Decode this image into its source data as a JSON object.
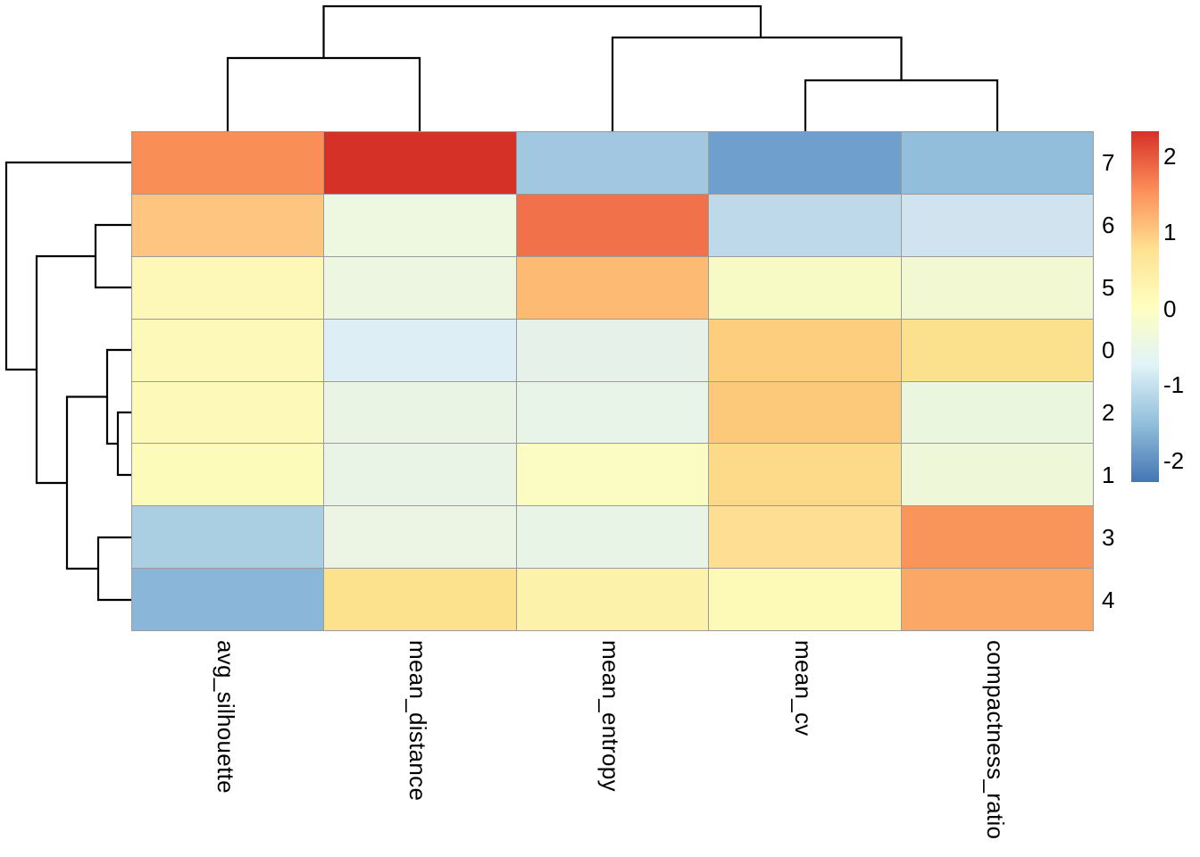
{
  "figure": {
    "background_color": "#ffffff",
    "grid_line_color": "#9b9b9b",
    "dendrogram_color": "#000000",
    "text_color": "#000000"
  },
  "chart_data": {
    "type": "heatmap",
    "title": "",
    "xlabel": "",
    "ylabel": "",
    "columns": [
      "avg_silhouette",
      "mean_distance",
      "mean_entropy",
      "mean_cv",
      "compactness_ratio"
    ],
    "rows": [
      "7",
      "6",
      "5",
      "0",
      "2",
      "1",
      "3",
      "4"
    ],
    "values": [
      [
        1.6,
        2.3,
        -1.25,
        -1.75,
        -1.4
      ],
      [
        1.1,
        -0.25,
        1.9,
        -1.0,
        -0.85
      ],
      [
        0.15,
        -0.3,
        1.3,
        -0.05,
        -0.15
      ],
      [
        0.12,
        -0.7,
        -0.45,
        1.0,
        0.8
      ],
      [
        0.1,
        -0.4,
        -0.42,
        1.05,
        -0.3
      ],
      [
        0.1,
        -0.4,
        0.0,
        0.9,
        -0.22
      ],
      [
        -1.15,
        -0.35,
        -0.43,
        0.85,
        1.5
      ],
      [
        -1.55,
        0.75,
        0.35,
        0.05,
        1.35
      ]
    ],
    "cell_colors": [
      [
        "#f98e57",
        "#d63127",
        "#a2c7e1",
        "#6f9fcd",
        "#92bedb"
      ],
      [
        "#fdc57f",
        "#eef7df",
        "#f0714a",
        "#bed9ea",
        "#d1e3ef"
      ],
      [
        "#fdf8b7",
        "#edf6e1",
        "#fdba72",
        "#f8fac5",
        "#f2f9d2"
      ],
      [
        "#fdf9b8",
        "#ddeef5",
        "#e6f2e9",
        "#fdce7e",
        "#fbe08e"
      ],
      [
        "#fdfab9",
        "#e9f4e4",
        "#e9f4e9",
        "#fcc97a",
        "#eaf6dd"
      ],
      [
        "#fdfbba",
        "#e9f4e6",
        "#fbfcc4",
        "#fdd98a",
        "#eef7d8"
      ],
      [
        "#abcfe2",
        "#ecf5e3",
        "#e8f4e6",
        "#fdde92",
        "#f9955a"
      ],
      [
        "#8ab7d9",
        "#fde28d",
        "#fdf2a9",
        "#fcfab6",
        "#fba765"
      ]
    ],
    "colorbar": {
      "ticks": [
        2,
        1,
        0,
        -1,
        -2
      ],
      "vmax": 2.33,
      "vmin": -2.28,
      "gradient_top_to_bottom": [
        "#d73027",
        "#fc8d59",
        "#fee090",
        "#ffffbf",
        "#e0f3f8",
        "#91bfdb",
        "#4575b4"
      ],
      "legend_position": "right"
    },
    "column_clustering": "((avg_silhouette,mean_distance),(mean_entropy,(mean_cv,compactness_ratio)))",
    "row_clustering": "(7,((6,5),((0,(2,1)),(3,4))))",
    "grid": true
  }
}
